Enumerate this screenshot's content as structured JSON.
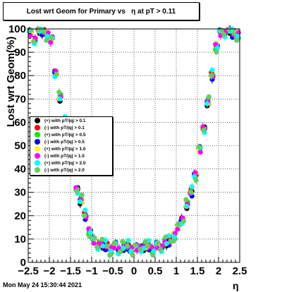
{
  "chart_data": {
    "type": "scatter",
    "title": "Lost wrt Geom for Primary vs   η at pT > 0.11",
    "xlabel": "η",
    "ylabel": "Lost wrt Geom(%)",
    "xlim": [
      -2.5,
      2.5
    ],
    "ylim": [
      0,
      100
    ],
    "xticks": [
      -2.5,
      -2,
      -1.5,
      -1,
      -0.5,
      0,
      0.5,
      1,
      1.5,
      2,
      2.5
    ],
    "xtick_labels": [
      "−2.5",
      "−2",
      "−1.5",
      "−1",
      "−0.5",
      "0",
      "0.5",
      "1",
      "1.5",
      "2",
      "2.5"
    ],
    "yticks": [
      0,
      10,
      20,
      30,
      40,
      50,
      60,
      70,
      80,
      90,
      100
    ],
    "ytick_labels": [
      "0",
      "10",
      "20",
      "30",
      "40",
      "50",
      "60",
      "70",
      "80",
      "90",
      "100"
    ],
    "grid": true,
    "legend_position": "middle-left",
    "series": [
      {
        "name": "(+) with pT/|q| > 0.1",
        "color": "#000000",
        "offset": -0.6
      },
      {
        "name": "(-) with pT/|q| > 0.1",
        "color": "#ff0000",
        "offset": 0.8
      },
      {
        "name": "(+) with pT/|q| > 0.5",
        "color": "#00ee00",
        "offset": -1.2
      },
      {
        "name": "(-) with pT/|q| > 0.5",
        "color": "#0000ff",
        "offset": 1.0
      },
      {
        "name": "(+) with pT/|q| > 1.0",
        "color": "#ffff00",
        "offset": -0.3
      },
      {
        "name": "(-) with pT/|q| > 1.0",
        "color": "#ff00ff",
        "offset": 0.5
      },
      {
        "name": "(+) with pT/|q| > 2.0",
        "color": "#00ffff",
        "offset": 1.5
      },
      {
        "name": "(-) with pT/|q| > 2.0",
        "color": "#66cc66",
        "offset": -1.8
      }
    ],
    "profile": {
      "x": [
        -2.45,
        -2.35,
        -2.25,
        -2.15,
        -2.05,
        -1.95,
        -1.85,
        -1.75,
        -1.65,
        -1.55,
        -1.45,
        -1.35,
        -1.25,
        -1.15,
        -1.05,
        -0.95,
        -0.85,
        -0.75,
        -0.65,
        -0.55,
        -0.45,
        -0.35,
        -0.25,
        -0.15,
        -0.05,
        0.05,
        0.15,
        0.25,
        0.35,
        0.45,
        0.55,
        0.65,
        0.75,
        0.85,
        0.95,
        1.05,
        1.15,
        1.25,
        1.35,
        1.45,
        1.55,
        1.65,
        1.75,
        1.85,
        1.95,
        2.05,
        2.15,
        2.25,
        2.35,
        2.45
      ],
      "y": [
        98,
        96,
        99,
        99,
        98,
        95,
        82,
        70,
        60,
        50,
        40,
        32,
        26,
        20,
        14,
        9,
        8,
        7,
        7,
        6,
        7,
        6,
        6,
        7,
        6,
        6,
        7,
        6,
        7,
        6,
        7,
        7,
        8,
        9,
        12,
        15,
        19,
        24,
        30,
        38,
        48,
        58,
        68,
        80,
        93,
        98,
        99,
        99,
        98,
        98
      ]
    },
    "timestamp": "Mon May 24 15:30:44 2021"
  }
}
